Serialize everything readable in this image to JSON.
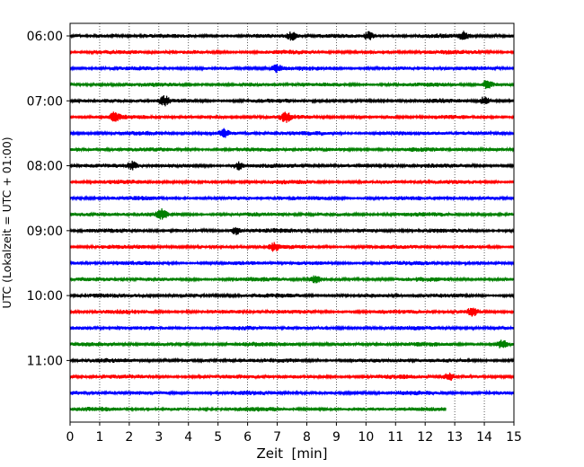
{
  "chart_data": {
    "type": "line",
    "title": "",
    "xlabel": "Zeit  [min]",
    "ylabel": "UTC (Lokalzeit = UTC + 01:00)",
    "xlim": [
      0,
      15
    ],
    "x_ticks": [
      0,
      1,
      2,
      3,
      4,
      5,
      6,
      7,
      8,
      9,
      10,
      11,
      12,
      13,
      14,
      15
    ],
    "x_tick_labels": [
      "0",
      "1",
      "2",
      "3",
      "4",
      "5",
      "6",
      "7",
      "8",
      "9",
      "10",
      "11",
      "12",
      "13",
      "14",
      "15"
    ],
    "y_tick_labels": [
      "06:00",
      "07:00",
      "08:00",
      "09:00",
      "10:00",
      "11:00"
    ],
    "y_tick_hours": [
      6,
      7,
      8,
      9,
      10,
      11
    ],
    "trace_interval_min": 15,
    "grid": "vertical dotted",
    "legend": "none",
    "colors_cycle": [
      "#000000",
      "#ff0000",
      "#0000ff",
      "#008000"
    ],
    "traces": [
      {
        "start": "06:00",
        "color": "#000000",
        "end_min": 15,
        "events": [
          7.5,
          10.1,
          13.3
        ]
      },
      {
        "start": "06:15",
        "color": "#ff0000",
        "end_min": 15,
        "events": []
      },
      {
        "start": "06:30",
        "color": "#0000ff",
        "end_min": 15,
        "events": [
          7.0
        ]
      },
      {
        "start": "06:45",
        "color": "#008000",
        "end_min": 15,
        "events": [
          14.1
        ]
      },
      {
        "start": "07:00",
        "color": "#000000",
        "end_min": 15,
        "events": [
          3.2,
          14.0
        ]
      },
      {
        "start": "07:15",
        "color": "#ff0000",
        "end_min": 15,
        "events": [
          1.5,
          7.3
        ]
      },
      {
        "start": "07:30",
        "color": "#0000ff",
        "end_min": 15,
        "events": [
          5.2
        ]
      },
      {
        "start": "07:45",
        "color": "#008000",
        "end_min": 15,
        "events": []
      },
      {
        "start": "08:00",
        "color": "#000000",
        "end_min": 15,
        "events": [
          2.1,
          5.7
        ]
      },
      {
        "start": "08:15",
        "color": "#ff0000",
        "end_min": 15,
        "events": []
      },
      {
        "start": "08:30",
        "color": "#0000ff",
        "end_min": 15,
        "events": []
      },
      {
        "start": "08:45",
        "color": "#008000",
        "end_min": 15,
        "events": [
          3.1
        ]
      },
      {
        "start": "09:00",
        "color": "#000000",
        "end_min": 15,
        "events": [
          5.6
        ]
      },
      {
        "start": "09:15",
        "color": "#ff0000",
        "end_min": 15,
        "events": [
          6.9
        ]
      },
      {
        "start": "09:30",
        "color": "#0000ff",
        "end_min": 15,
        "events": []
      },
      {
        "start": "09:45",
        "color": "#008000",
        "end_min": 15,
        "events": [
          8.3
        ]
      },
      {
        "start": "10:00",
        "color": "#000000",
        "end_min": 15,
        "events": []
      },
      {
        "start": "10:15",
        "color": "#ff0000",
        "end_min": 15,
        "events": [
          13.6
        ]
      },
      {
        "start": "10:30",
        "color": "#0000ff",
        "end_min": 15,
        "events": []
      },
      {
        "start": "10:45",
        "color": "#008000",
        "end_min": 15,
        "events": [
          14.6
        ]
      },
      {
        "start": "11:00",
        "color": "#000000",
        "end_min": 15,
        "events": []
      },
      {
        "start": "11:15",
        "color": "#ff0000",
        "end_min": 15,
        "events": [
          12.8
        ]
      },
      {
        "start": "11:30",
        "color": "#0000ff",
        "end_min": 15,
        "events": []
      },
      {
        "start": "11:45",
        "color": "#008000",
        "end_min": 12.7,
        "events": []
      }
    ]
  }
}
